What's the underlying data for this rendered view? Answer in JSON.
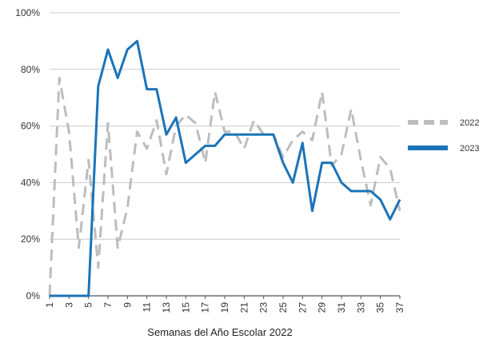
{
  "chart_data": {
    "type": "line",
    "title": "",
    "xlabel": "Semanas del Año Escolar 2022",
    "ylabel": "",
    "x": [
      1,
      2,
      3,
      4,
      5,
      6,
      7,
      8,
      9,
      10,
      11,
      12,
      13,
      14,
      15,
      16,
      17,
      18,
      19,
      20,
      21,
      22,
      23,
      24,
      25,
      26,
      27,
      28,
      29,
      30,
      31,
      32,
      33,
      34,
      35,
      36,
      37
    ],
    "x_tick_labels": [
      "1",
      "3",
      "5",
      "7",
      "9",
      "11",
      "13",
      "15",
      "17",
      "19",
      "21",
      "23",
      "25",
      "27",
      "29",
      "31",
      "33",
      "35",
      "37"
    ],
    "y_tick_labels": [
      "0%",
      "20%",
      "40%",
      "60%",
      "80%",
      "100%"
    ],
    "ylim": [
      0,
      100
    ],
    "grid": "horizontal",
    "legend": "right",
    "series": [
      {
        "name": "2022",
        "color": "#bdbdbd",
        "style": "dashed",
        "values": [
          0,
          77,
          58,
          17,
          48,
          10,
          61,
          17,
          31,
          58,
          52,
          62,
          43,
          60,
          64,
          61,
          47,
          72,
          58,
          58,
          52,
          62,
          57,
          57,
          49,
          55,
          58,
          55,
          72,
          46,
          50,
          66,
          48,
          32,
          49,
          45,
          30
        ]
      },
      {
        "name": "2023",
        "color": "#1b74b8",
        "style": "solid",
        "values": [
          0,
          0,
          0,
          0,
          0,
          74,
          87,
          77,
          87,
          90,
          73,
          73,
          57,
          63,
          47,
          50,
          53,
          53,
          57,
          57,
          57,
          57,
          57,
          57,
          47,
          40,
          54,
          30,
          47,
          47,
          40,
          37,
          37,
          37,
          34,
          27,
          34
        ]
      }
    ]
  }
}
